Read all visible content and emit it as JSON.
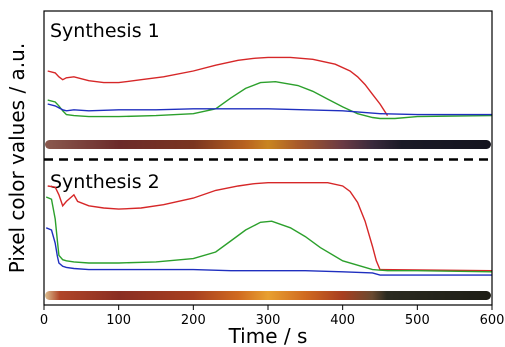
{
  "chart_data": {
    "type": "line",
    "xlabel": "Time / s",
    "ylabel": "Pixel color values / a.u.",
    "xlim": [
      0,
      600
    ],
    "xticks": [
      0,
      100,
      200,
      300,
      400,
      500,
      600
    ],
    "grid": false,
    "panels": [
      {
        "title": "Synthesis 1",
        "series": [
          {
            "color": "#d62728",
            "x": [
              5,
              15,
              20,
              25,
              30,
              40,
              60,
              80,
              100,
              130,
              160,
              200,
              230,
              260,
              280,
              300,
              330,
              360,
              390,
              410,
              420,
              430,
              440,
              450,
              460
            ],
            "y": [
              0.66,
              0.64,
              0.6,
              0.57,
              0.59,
              0.6,
              0.56,
              0.54,
              0.54,
              0.57,
              0.6,
              0.66,
              0.72,
              0.77,
              0.79,
              0.8,
              0.8,
              0.78,
              0.73,
              0.66,
              0.6,
              0.52,
              0.42,
              0.32,
              0.2
            ]
          },
          {
            "color": "#2ca02c",
            "x": [
              5,
              15,
              20,
              25,
              30,
              40,
              60,
              100,
              150,
              200,
              230,
              250,
              270,
              290,
              310,
              340,
              360,
              380,
              400,
              420,
              440,
              450,
              470,
              500,
              600
            ],
            "y": [
              0.36,
              0.34,
              0.3,
              0.25,
              0.21,
              0.2,
              0.19,
              0.19,
              0.2,
              0.22,
              0.27,
              0.38,
              0.48,
              0.54,
              0.55,
              0.51,
              0.45,
              0.37,
              0.29,
              0.22,
              0.18,
              0.17,
              0.17,
              0.19,
              0.2
            ]
          },
          {
            "color": "#1f2fbf",
            "x": [
              5,
              15,
              25,
              30,
              40,
              60,
              100,
              150,
              200,
              250,
              300,
              350,
              400,
              450,
              500,
              600
            ],
            "y": [
              0.32,
              0.3,
              0.26,
              0.25,
              0.26,
              0.25,
              0.26,
              0.26,
              0.27,
              0.27,
              0.27,
              0.26,
              0.25,
              0.22,
              0.21,
              0.21
            ]
          }
        ]
      },
      {
        "title": "Synthesis 2",
        "series": [
          {
            "color": "#d62728",
            "x": [
              5,
              15,
              20,
              25,
              30,
              35,
              40,
              45,
              60,
              80,
              100,
              130,
              160,
              200,
              230,
              260,
              280,
              300,
              320,
              350,
              380,
              400,
              410,
              420,
              430,
              440,
              445,
              450,
              600
            ],
            "y": [
              0.9,
              0.89,
              0.82,
              0.72,
              0.76,
              0.79,
              0.82,
              0.76,
              0.72,
              0.7,
              0.69,
              0.7,
              0.73,
              0.79,
              0.86,
              0.9,
              0.92,
              0.93,
              0.93,
              0.93,
              0.93,
              0.9,
              0.85,
              0.75,
              0.58,
              0.35,
              0.22,
              0.14,
              0.13
            ]
          },
          {
            "color": "#2ca02c",
            "x": [
              3,
              10,
              15,
              18,
              20,
              25,
              30,
              40,
              60,
              100,
              150,
              200,
              230,
              250,
              270,
              290,
              305,
              330,
              350,
              370,
              400,
              420,
              440,
              460,
              500,
              600
            ],
            "y": [
              0.8,
              0.78,
              0.6,
              0.4,
              0.27,
              0.23,
              0.22,
              0.21,
              0.2,
              0.2,
              0.21,
              0.24,
              0.3,
              0.4,
              0.5,
              0.57,
              0.58,
              0.52,
              0.44,
              0.34,
              0.22,
              0.18,
              0.14,
              0.13,
              0.13,
              0.12
            ]
          },
          {
            "color": "#1f2fbf",
            "x": [
              3,
              10,
              15,
              18,
              20,
              25,
              30,
              40,
              60,
              100,
              150,
              200,
              250,
              300,
              350,
              400,
              440,
              450,
              500,
              600
            ],
            "y": [
              0.52,
              0.5,
              0.38,
              0.26,
              0.2,
              0.17,
              0.16,
              0.15,
              0.14,
              0.14,
              0.14,
              0.14,
              0.13,
              0.13,
              0.13,
              0.12,
              0.11,
              0.09,
              0.09,
              0.09
            ]
          }
        ]
      }
    ]
  },
  "color_bars": [
    {
      "stops": [
        {
          "t": 0,
          "color": "#8a5a4f"
        },
        {
          "t": 100,
          "color": "#6b2a2a"
        },
        {
          "t": 200,
          "color": "#7a3520"
        },
        {
          "t": 270,
          "color": "#b8621f"
        },
        {
          "t": 300,
          "color": "#c98520"
        },
        {
          "t": 340,
          "color": "#a85a2a"
        },
        {
          "t": 400,
          "color": "#6a3a44"
        },
        {
          "t": 440,
          "color": "#3a2a3c"
        },
        {
          "t": 480,
          "color": "#1a1a26"
        },
        {
          "t": 600,
          "color": "#14141e"
        }
      ]
    },
    {
      "stops": [
        {
          "t": 0,
          "color": "#dcbf90"
        },
        {
          "t": 20,
          "color": "#b04528"
        },
        {
          "t": 100,
          "color": "#8a2e22"
        },
        {
          "t": 200,
          "color": "#a84020"
        },
        {
          "t": 260,
          "color": "#d06a20"
        },
        {
          "t": 300,
          "color": "#e8a030"
        },
        {
          "t": 350,
          "color": "#d06a20"
        },
        {
          "t": 400,
          "color": "#a83e20"
        },
        {
          "t": 440,
          "color": "#6a4a30"
        },
        {
          "t": 460,
          "color": "#2a2a20"
        },
        {
          "t": 600,
          "color": "#1e1e16"
        }
      ]
    }
  ]
}
